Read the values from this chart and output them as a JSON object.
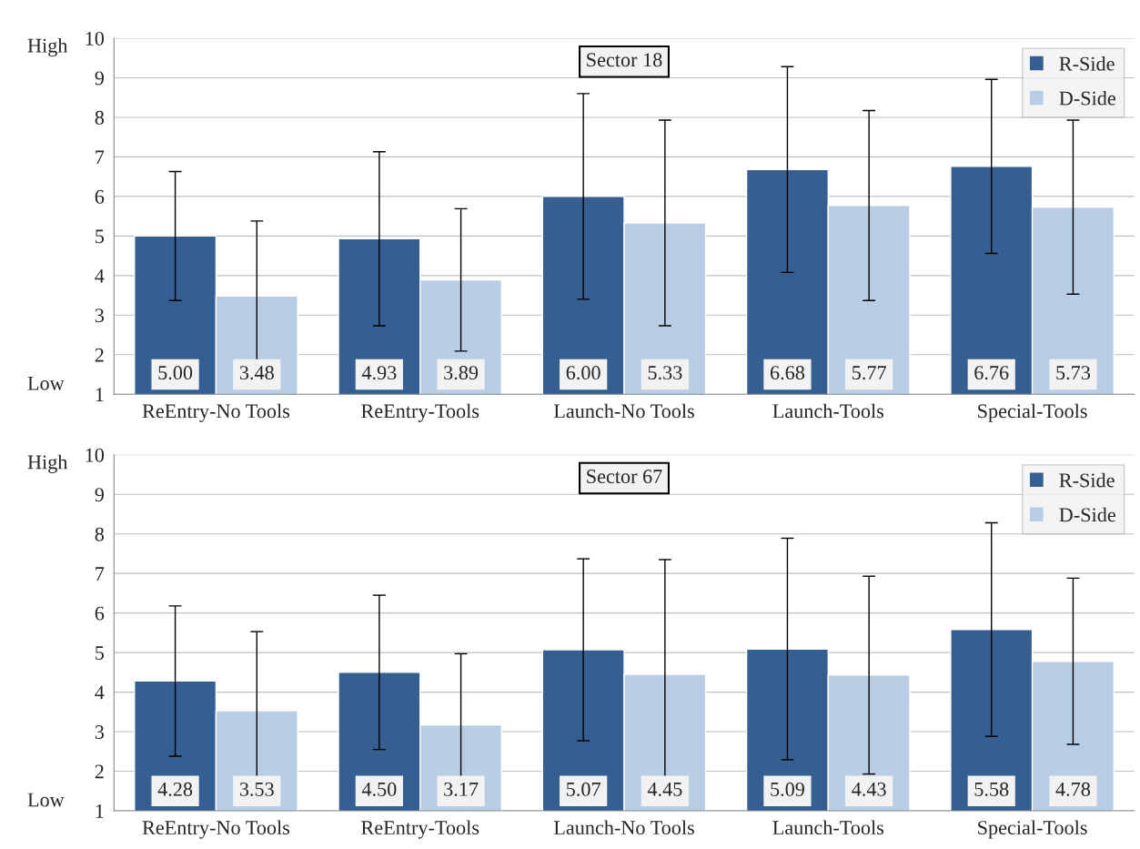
{
  "chart_data": [
    {
      "type": "bar",
      "title": "Sector 18",
      "categories": [
        "ReEntry-No Tools",
        "ReEntry-Tools",
        "Launch-No Tools",
        "Launch-Tools",
        "Special-Tools"
      ],
      "series": [
        {
          "name": "R-Side",
          "color": "#355f91",
          "values": [
            5.0,
            4.93,
            6.0,
            6.68,
            6.76
          ],
          "errors": [
            1.63,
            2.2,
            2.6,
            2.6,
            2.2
          ],
          "value_labels": [
            "5.00",
            "4.93",
            "6.00",
            "6.68",
            "6.76"
          ]
        },
        {
          "name": "D-Side",
          "color": "#b9cde5",
          "values": [
            3.48,
            3.89,
            5.33,
            5.77,
            5.73
          ],
          "errors": [
            1.9,
            1.8,
            2.6,
            2.4,
            2.2
          ],
          "value_labels": [
            "3.48",
            "3.89",
            "5.33",
            "5.77",
            "5.73"
          ]
        }
      ],
      "ylim": [
        1,
        10
      ],
      "yticks": [
        1,
        2,
        3,
        4,
        5,
        6,
        7,
        8,
        9,
        10
      ],
      "grid": "y",
      "legend": "top right",
      "annotations": [
        "High",
        "Low"
      ]
    },
    {
      "type": "bar",
      "title": "Sector 67",
      "categories": [
        "ReEntry-No Tools",
        "ReEntry-Tools",
        "Launch-No Tools",
        "Launch-Tools",
        "Special-Tools"
      ],
      "series": [
        {
          "name": "R-Side",
          "color": "#355f91",
          "values": [
            4.28,
            4.5,
            5.07,
            5.09,
            5.58
          ],
          "errors": [
            1.9,
            1.95,
            2.3,
            2.8,
            2.7
          ],
          "value_labels": [
            "4.28",
            "4.50",
            "5.07",
            "5.09",
            "5.58"
          ]
        },
        {
          "name": "D-Side",
          "color": "#b9cde5",
          "values": [
            3.53,
            3.17,
            4.45,
            4.43,
            4.78
          ],
          "errors": [
            2.0,
            1.8,
            2.9,
            2.5,
            2.1
          ],
          "value_labels": [
            "3.53",
            "3.17",
            "4.45",
            "4.43",
            "4.78"
          ]
        }
      ],
      "ylim": [
        1,
        10
      ],
      "yticks": [
        1,
        2,
        3,
        4,
        5,
        6,
        7,
        8,
        9,
        10
      ],
      "grid": "y",
      "legend": "top right",
      "annotations": [
        "High",
        "Low"
      ]
    }
  ]
}
